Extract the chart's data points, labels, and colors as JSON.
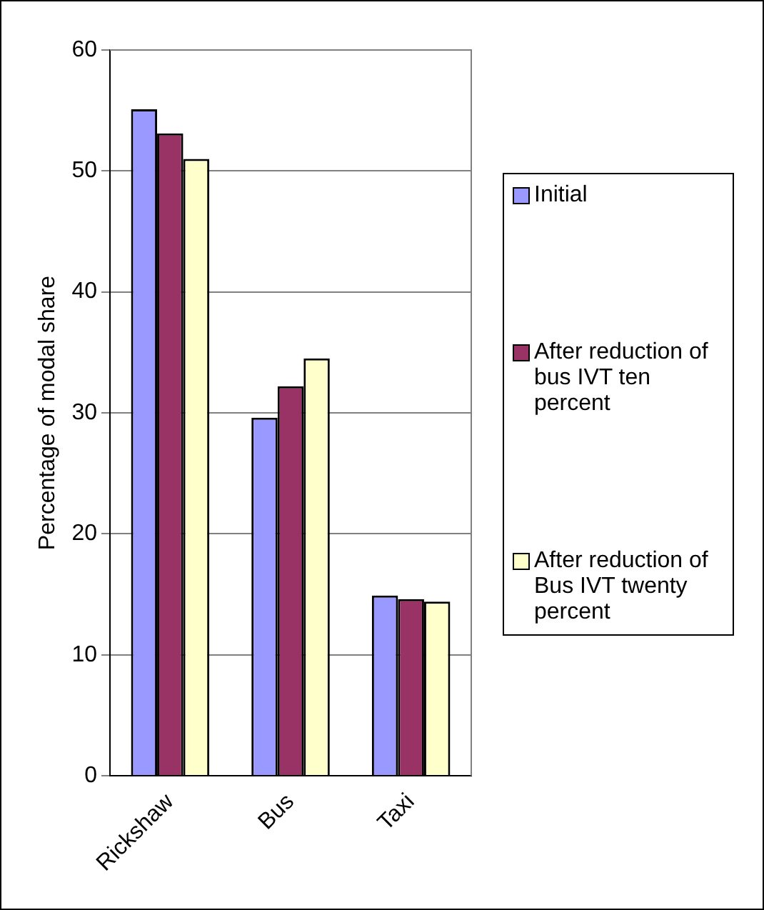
{
  "chart_data": {
    "type": "bar",
    "ylabel": "Percentage of modal share",
    "categories": [
      "Rickshaw",
      "Bus",
      "Taxi"
    ],
    "series": [
      {
        "name": "Initial",
        "color": "#9999ff",
        "values": [
          55.1,
          29.6,
          14.9
        ]
      },
      {
        "name": "After reduction of bus IVT ten percent",
        "color": "#993366",
        "values": [
          53.1,
          32.2,
          14.6
        ]
      },
      {
        "name": "After reduction of Bus IVT twenty percent",
        "color": "#ffffcc",
        "values": [
          51.0,
          34.5,
          14.4
        ]
      }
    ],
    "ylim": [
      0,
      60
    ],
    "yticks": [
      0,
      10,
      20,
      30,
      40,
      50,
      60
    ],
    "grid": "y",
    "legend": "right"
  }
}
